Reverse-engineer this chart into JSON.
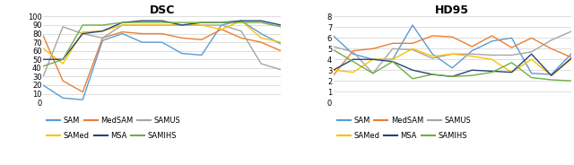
{
  "dsc": {
    "title": "DSC",
    "ylim": [
      0,
      100
    ],
    "yticks": [
      0,
      10,
      20,
      30,
      40,
      50,
      60,
      70,
      80,
      90,
      100
    ],
    "series": {
      "SAM": [
        20,
        5,
        3,
        72,
        80,
        70,
        70,
        57,
        55,
        90,
        95,
        80,
        68
      ],
      "MedSAM": [
        78,
        25,
        12,
        75,
        82,
        80,
        80,
        75,
        73,
        85,
        75,
        70,
        60
      ],
      "SAMUS": [
        30,
        88,
        80,
        75,
        90,
        90,
        90,
        90,
        90,
        90,
        83,
        45,
        38
      ],
      "SAMed": [
        63,
        45,
        82,
        83,
        90,
        90,
        90,
        90,
        90,
        85,
        95,
        75,
        70
      ],
      "MSA": [
        50,
        50,
        80,
        83,
        93,
        95,
        95,
        90,
        93,
        93,
        95,
        95,
        90
      ],
      "SAMIHS": [
        42,
        50,
        90,
        90,
        93,
        93,
        93,
        93,
        93,
        93,
        93,
        93,
        88
      ]
    }
  },
  "hd95": {
    "title": "HD95",
    "ylim": [
      0,
      8
    ],
    "yticks": [
      0,
      1,
      2,
      3,
      4,
      5,
      6,
      7,
      8
    ],
    "series": {
      "SAM": [
        6.2,
        4.5,
        4.0,
        4.0,
        7.2,
        4.5,
        3.2,
        4.8,
        5.7,
        6.0,
        2.7,
        2.6,
        4.5
      ],
      "MedSAM": [
        2.5,
        4.8,
        5.0,
        5.5,
        5.5,
        6.2,
        6.1,
        5.2,
        6.2,
        5.1,
        6.0,
        5.0,
        4.2
      ],
      "SAMUS": [
        5.2,
        4.7,
        2.7,
        5.0,
        4.9,
        4.1,
        4.5,
        4.5,
        4.4,
        4.4,
        4.7,
        5.8,
        6.6
      ],
      "SAMed": [
        3.0,
        2.8,
        4.0,
        4.0,
        5.0,
        4.3,
        4.5,
        4.3,
        4.0,
        2.8,
        4.0,
        2.5,
        4.0
      ],
      "MSA": [
        3.0,
        4.0,
        4.0,
        3.8,
        3.0,
        2.6,
        2.4,
        3.0,
        2.9,
        2.8,
        4.5,
        2.5,
        4.1
      ],
      "SAMIHS": [
        4.9,
        3.8,
        2.7,
        3.8,
        2.2,
        2.6,
        2.4,
        2.5,
        2.8,
        3.7,
        2.3,
        2.1,
        2.0
      ]
    }
  },
  "colors": {
    "SAM": "#5B9BD5",
    "MedSAM": "#ED7D31",
    "SAMUS": "#A5A5A5",
    "SAMed": "#FFC000",
    "MSA": "#264478",
    "SAMIHS": "#70AD47"
  },
  "legend_row1": [
    "SAM",
    "MedSAM",
    "SAMUS"
  ],
  "legend_row2": [
    "SAMed",
    "MSA",
    "SAMIHS"
  ]
}
